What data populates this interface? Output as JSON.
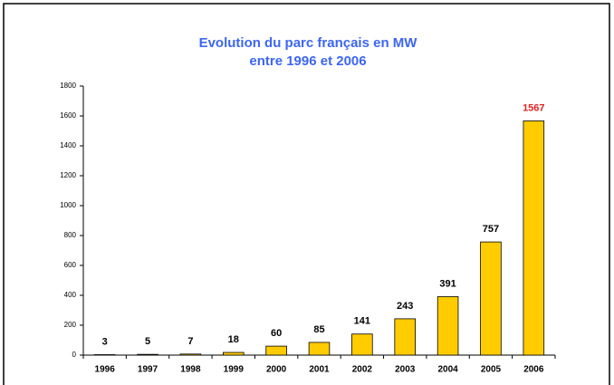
{
  "chart_data": {
    "type": "bar",
    "title": [
      "Evolution du parc français en MW",
      "entre 1996 et 2006"
    ],
    "title_color": "#3d66f0",
    "categories": [
      "1996",
      "1997",
      "1998",
      "1999",
      "2000",
      "2001",
      "2002",
      "2003",
      "2004",
      "2005",
      "2006"
    ],
    "values": [
      3,
      5,
      7,
      18,
      60,
      85,
      141,
      243,
      391,
      757,
      1567
    ],
    "color": "#ffcc00",
    "value_label_color": "#000000",
    "highlight": {
      "index": 10,
      "color": "#e02222"
    },
    "ylim": [
      0,
      1800
    ],
    "yticks": [
      0,
      200,
      400,
      600,
      800,
      1000,
      1200,
      1400,
      1600,
      1800
    ],
    "grid": false
  }
}
